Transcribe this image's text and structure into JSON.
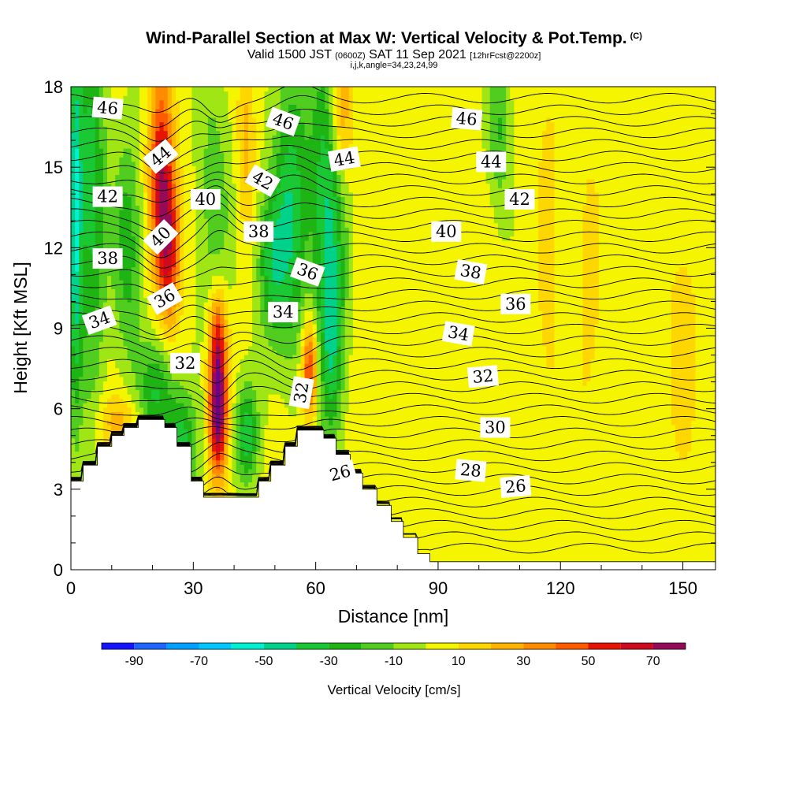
{
  "title": {
    "main": "Wind-Parallel Section at Max W: Vertical Velocity & Pot.Temp.",
    "copyright": "(C)",
    "valid_prefix": "Valid 1500 JST",
    "valid_utc": "(0600Z)",
    "valid_date": "SAT 11 Sep 2021",
    "forecast": "[12hrFcst@2200z]",
    "indices": "i,j,k,angle=34,23,24,99"
  },
  "chart_data": {
    "type": "contour",
    "xlabel": "Distance [nm]",
    "ylabel": "Height [Kft MSL]",
    "xlim": [
      0,
      158
    ],
    "ylim": [
      0,
      18
    ],
    "x_ticks": [
      0,
      30,
      60,
      90,
      120,
      150
    ],
    "y_ticks": [
      0,
      3,
      6,
      9,
      12,
      15,
      18
    ],
    "colorbar": {
      "title": "Vertical Velocity [cm/s]",
      "tick_values": [
        -90,
        -70,
        -50,
        -30,
        -10,
        10,
        30,
        50,
        70
      ],
      "tick_labels": [
        "-90",
        "-70",
        "-50",
        "-30",
        "-10",
        "10",
        "30",
        "50",
        "70"
      ],
      "levels": [
        -90,
        -80,
        -70,
        -60,
        -50,
        -40,
        -30,
        -20,
        -10,
        0,
        10,
        20,
        30,
        40,
        50,
        60,
        70,
        80
      ],
      "colors": [
        "#1414ff",
        "#1e64ff",
        "#00a0ff",
        "#00c8ff",
        "#00f0d2",
        "#00d28c",
        "#19c832",
        "#1eb414",
        "#50cd1e",
        "#a0e614",
        "#f5f500",
        "#ffd700",
        "#ffb400",
        "#ff8c00",
        "#ff5a00",
        "#e61400",
        "#cd0a1e",
        "#960a5a",
        "#6e008c"
      ]
    },
    "terrain_kft": [
      [
        0,
        3.3
      ],
      [
        3,
        3.3
      ],
      [
        3,
        3.9
      ],
      [
        6.5,
        3.9
      ],
      [
        6.5,
        4.6
      ],
      [
        10,
        4.6
      ],
      [
        10,
        5.0
      ],
      [
        13,
        5.0
      ],
      [
        13,
        5.3
      ],
      [
        16.5,
        5.3
      ],
      [
        16.5,
        5.6
      ],
      [
        23,
        5.6
      ],
      [
        23,
        5.3
      ],
      [
        26,
        5.3
      ],
      [
        26,
        4.6
      ],
      [
        29.5,
        4.6
      ],
      [
        29.5,
        3.3
      ],
      [
        32.5,
        3.3
      ],
      [
        32.5,
        2.7
      ],
      [
        36,
        2.7
      ],
      [
        36,
        2.7
      ],
      [
        46,
        2.7
      ],
      [
        46,
        3.3
      ],
      [
        49,
        3.3
      ],
      [
        49,
        3.9
      ],
      [
        52.5,
        3.9
      ],
      [
        52.5,
        4.6
      ],
      [
        55.5,
        4.6
      ],
      [
        55.5,
        5.2
      ],
      [
        62,
        5.2
      ],
      [
        62,
        4.9
      ],
      [
        65,
        4.9
      ],
      [
        65,
        4.3
      ],
      [
        68.5,
        4.3
      ],
      [
        68.5,
        3.6
      ],
      [
        71.5,
        3.6
      ],
      [
        71.5,
        3.0
      ],
      [
        75,
        3.0
      ],
      [
        75,
        2.4
      ],
      [
        78.5,
        2.4
      ],
      [
        78.5,
        1.8
      ],
      [
        81.5,
        1.8
      ],
      [
        81.5,
        1.2
      ],
      [
        85,
        1.2
      ],
      [
        85,
        0.6
      ],
      [
        88,
        0.6
      ],
      [
        88,
        0.3
      ],
      [
        158,
        0.3
      ]
    ],
    "velocity_features": [
      {
        "x": 1,
        "y": 13,
        "w": -50,
        "sx": 1.2,
        "sy": 5
      },
      {
        "x": 5,
        "y": 14,
        "w": -40,
        "sx": 2.5,
        "sy": 5
      },
      {
        "x": 14,
        "y": 12,
        "w": -30,
        "sx": 2.5,
        "sy": 3
      },
      {
        "x": 21,
        "y": 6.5,
        "w": -35,
        "sx": 3,
        "sy": 1.5
      },
      {
        "x": 27,
        "y": 4.5,
        "w": -40,
        "sx": 2.5,
        "sy": 1.5
      },
      {
        "x": 35,
        "y": 13.5,
        "w": -20,
        "sx": 3,
        "sy": 4
      },
      {
        "x": 43,
        "y": 5,
        "w": -40,
        "sx": 2,
        "sy": 1.3
      },
      {
        "x": 49,
        "y": 11.5,
        "w": -35,
        "sx": 2.5,
        "sy": 2
      },
      {
        "x": 54,
        "y": 13.5,
        "w": -40,
        "sx": 3,
        "sy": 4
      },
      {
        "x": 63,
        "y": 14,
        "w": -45,
        "sx": 3,
        "sy": 4
      },
      {
        "x": 64,
        "y": 8,
        "w": -35,
        "sx": 2,
        "sy": 2.5
      },
      {
        "x": 105,
        "y": 16.5,
        "w": -25,
        "sx": 2,
        "sy": 2
      },
      {
        "x": 22,
        "y": 15,
        "w": 55,
        "sx": 2,
        "sy": 2.5
      },
      {
        "x": 24,
        "y": 12,
        "w": 55,
        "sx": 2,
        "sy": 2
      },
      {
        "x": 36,
        "y": 5.8,
        "w": 80,
        "sx": 1.5,
        "sy": 1.6
      },
      {
        "x": 36,
        "y": 8.5,
        "w": 50,
        "sx": 1.6,
        "sy": 1.5
      },
      {
        "x": 58.5,
        "y": 7.5,
        "w": 55,
        "sx": 1.4,
        "sy": 1.3
      },
      {
        "x": 66,
        "y": 17,
        "w": 35,
        "sx": 2,
        "sy": 2
      },
      {
        "x": 43,
        "y": 16,
        "w": 20,
        "sx": 1.5,
        "sy": 2.5
      },
      {
        "x": 12,
        "y": 5.5,
        "w": 20,
        "sx": 4,
        "sy": 0.7
      },
      {
        "x": 117,
        "y": 12,
        "w": 10,
        "sx": 2,
        "sy": 6
      },
      {
        "x": 127,
        "y": 10,
        "w": 10,
        "sx": 2,
        "sy": 4
      },
      {
        "x": 150,
        "y": 9,
        "w": 10,
        "sx": 3,
        "sy": 4
      }
    ],
    "theta_labels": [
      {
        "text": "46",
        "x": 9,
        "y": 17.2,
        "rot": 5
      },
      {
        "text": "44",
        "x": 22,
        "y": 15.4,
        "rot": -40
      },
      {
        "text": "42",
        "x": 9,
        "y": 13.9,
        "rot": 0
      },
      {
        "text": "40",
        "x": 33,
        "y": 13.8,
        "rot": 0
      },
      {
        "text": "40",
        "x": 22,
        "y": 12.4,
        "rot": -45
      },
      {
        "text": "38",
        "x": 9,
        "y": 11.6,
        "rot": 0
      },
      {
        "text": "36",
        "x": 23,
        "y": 10.1,
        "rot": -30
      },
      {
        "text": "34",
        "x": 7,
        "y": 9.3,
        "rot": -20
      },
      {
        "text": "32",
        "x": 28,
        "y": 7.7,
        "rot": 0
      },
      {
        "text": "46",
        "x": 52,
        "y": 16.7,
        "rot": 20
      },
      {
        "text": "42",
        "x": 47,
        "y": 14.5,
        "rot": 30
      },
      {
        "text": "38",
        "x": 46,
        "y": 12.6,
        "rot": 0
      },
      {
        "text": "34",
        "x": 52,
        "y": 9.6,
        "rot": 0
      },
      {
        "text": "36",
        "x": 58,
        "y": 11.1,
        "rot": 20
      },
      {
        "text": "32",
        "x": 56.5,
        "y": 6.6,
        "rot": -80
      },
      {
        "text": "44",
        "x": 67,
        "y": 15.3,
        "rot": -10
      },
      {
        "text": "26",
        "x": 66,
        "y": 3.6,
        "rot": -15
      },
      {
        "text": "46",
        "x": 97,
        "y": 16.8,
        "rot": 5
      },
      {
        "text": "44",
        "x": 103,
        "y": 15.2,
        "rot": 0
      },
      {
        "text": "42",
        "x": 110,
        "y": 13.8,
        "rot": 0
      },
      {
        "text": "40",
        "x": 92,
        "y": 12.6,
        "rot": 0
      },
      {
        "text": "38",
        "x": 98,
        "y": 11.1,
        "rot": 10
      },
      {
        "text": "36",
        "x": 109,
        "y": 9.9,
        "rot": 0
      },
      {
        "text": "34",
        "x": 95,
        "y": 8.8,
        "rot": 10
      },
      {
        "text": "32",
        "x": 101,
        "y": 7.2,
        "rot": -5
      },
      {
        "text": "30",
        "x": 104,
        "y": 5.3,
        "rot": 0
      },
      {
        "text": "28",
        "x": 98,
        "y": 3.7,
        "rot": 5
      },
      {
        "text": "26",
        "x": 109,
        "y": 3.1,
        "rot": -5
      }
    ]
  }
}
